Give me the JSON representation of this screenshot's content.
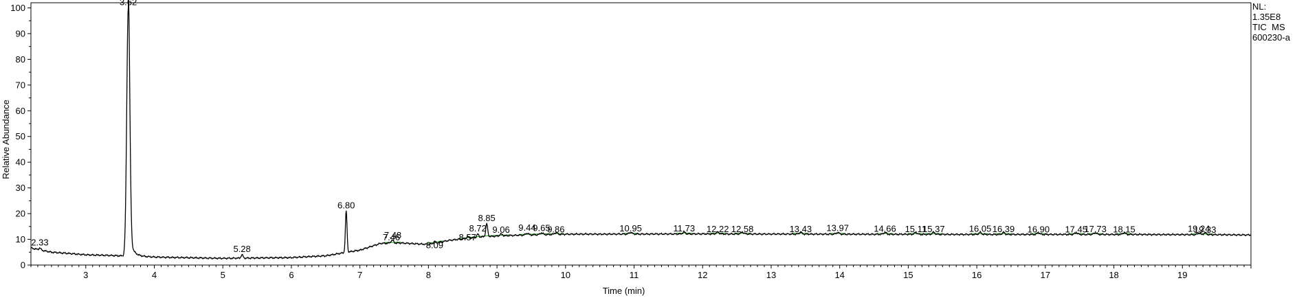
{
  "info": {
    "nl_label": "NL:",
    "nl_value": "1.35E8",
    "trace": "TIC  MS",
    "sample": "600230-a"
  },
  "chart_data": {
    "type": "line",
    "title": "",
    "xlabel": "Time (min)",
    "ylabel": "Relative Abundance",
    "xlim": [
      2.2,
      20.0
    ],
    "ylim": [
      0,
      102
    ],
    "x_ticks": [
      3,
      4,
      5,
      6,
      7,
      8,
      9,
      10,
      11,
      12,
      13,
      14,
      15,
      16,
      17,
      18,
      19
    ],
    "y_ticks": [
      0,
      10,
      20,
      30,
      40,
      50,
      60,
      70,
      80,
      90,
      100
    ],
    "grid": false,
    "line_color": "#000000",
    "baseline_color": "#22a022",
    "baseline": [
      [
        2.2,
        6.6
      ],
      [
        2.5,
        5.0
      ],
      [
        3.0,
        4.0
      ],
      [
        3.5,
        3.6
      ],
      [
        4.0,
        3.1
      ],
      [
        5.0,
        2.6
      ],
      [
        6.0,
        2.9
      ],
      [
        6.5,
        3.6
      ],
      [
        7.0,
        5.8
      ],
      [
        7.3,
        8.4
      ],
      [
        7.6,
        8.6
      ],
      [
        8.0,
        8.0
      ],
      [
        8.3,
        9.6
      ],
      [
        8.8,
        11.0
      ],
      [
        9.3,
        11.6
      ],
      [
        10.0,
        12.0
      ],
      [
        12.0,
        12.1
      ],
      [
        14.0,
        12.0
      ],
      [
        16.0,
        11.9
      ],
      [
        18.0,
        11.9
      ],
      [
        19.5,
        11.8
      ],
      [
        20.0,
        11.7
      ]
    ],
    "peaks": [
      {
        "label": "2.33",
        "x": 2.33,
        "y": 6.5
      },
      {
        "label": "3.62",
        "x": 3.62,
        "y": 100
      },
      {
        "label": "5.28",
        "x": 5.28,
        "y": 4.0
      },
      {
        "label": "6.80",
        "x": 6.8,
        "y": 21
      },
      {
        "label": "7.46",
        "x": 7.46,
        "y": 8.5
      },
      {
        "label": "7.48",
        "x": 7.48,
        "y": 9.3
      },
      {
        "label": "8.09",
        "x": 8.09,
        "y": 5.5
      },
      {
        "label": "8.57",
        "x": 8.57,
        "y": 8.6
      },
      {
        "label": "8.72",
        "x": 8.72,
        "y": 12.0
      },
      {
        "label": "8.85",
        "x": 8.85,
        "y": 16.0
      },
      {
        "label": "9.06",
        "x": 9.06,
        "y": 11.5
      },
      {
        "label": "9.44",
        "x": 9.44,
        "y": 12.3
      },
      {
        "label": "9.65",
        "x": 9.65,
        "y": 12.1
      },
      {
        "label": "9.86",
        "x": 9.86,
        "y": 11.6
      },
      {
        "label": "10.95",
        "x": 10.95,
        "y": 12.0
      },
      {
        "label": "11.73",
        "x": 11.73,
        "y": 12.0
      },
      {
        "label": "12.22",
        "x": 12.22,
        "y": 11.8
      },
      {
        "label": "12.58",
        "x": 12.58,
        "y": 11.8
      },
      {
        "label": "13.43",
        "x": 13.43,
        "y": 11.8
      },
      {
        "label": "13.97",
        "x": 13.97,
        "y": 12.2
      },
      {
        "label": "14.66",
        "x": 14.66,
        "y": 11.9
      },
      {
        "label": "15.11",
        "x": 15.11,
        "y": 11.8
      },
      {
        "label": "15.37",
        "x": 15.37,
        "y": 11.8
      },
      {
        "label": "16.05",
        "x": 16.05,
        "y": 11.9
      },
      {
        "label": "16.39",
        "x": 16.39,
        "y": 11.8
      },
      {
        "label": "16.90",
        "x": 16.9,
        "y": 11.6
      },
      {
        "label": "17.45",
        "x": 17.45,
        "y": 11.6
      },
      {
        "label": "17.73",
        "x": 17.73,
        "y": 11.7
      },
      {
        "label": "18.15",
        "x": 18.15,
        "y": 11.6
      },
      {
        "label": "19.24",
        "x": 19.24,
        "y": 11.9
      },
      {
        "label": "19.33",
        "x": 19.33,
        "y": 11.5
      }
    ]
  }
}
